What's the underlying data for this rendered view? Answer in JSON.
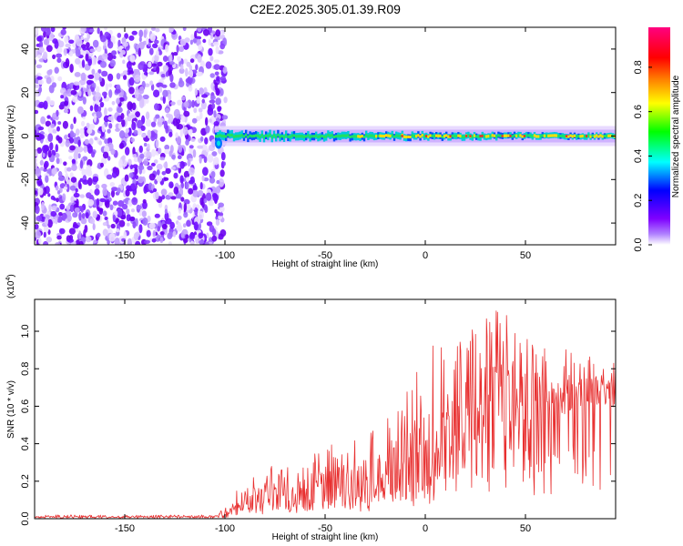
{
  "figure_title": "C2E2.2025.305.01.39.R09",
  "chart_data": [
    {
      "type": "heatmap",
      "title": "C2E2.2025.305.01.39.R09",
      "xlabel": "Height of straight line (km)",
      "ylabel": "Frequency (Hz)",
      "xlim": [
        -195,
        95
      ],
      "ylim": [
        -50,
        50
      ],
      "x_ticks": [
        -150,
        -100,
        -50,
        0,
        50
      ],
      "x_tick_labels": [
        "-150",
        "-100",
        "-50",
        "0",
        "50"
      ],
      "y_ticks": [
        -40,
        -20,
        0,
        20,
        40
      ],
      "y_tick_labels": [
        "-40",
        "-20",
        "0",
        "20",
        "40"
      ],
      "colorbar": {
        "label": "Normalized spectral amplitude",
        "range": [
          0,
          1
        ],
        "ticks": [
          0.0,
          0.2,
          0.4,
          0.6,
          0.8
        ],
        "tick_labels": [
          "0.0",
          "0.2",
          "0.4",
          "0.6",
          "0.8"
        ],
        "colormap": [
          "#ffffff",
          "#7f00ff",
          "#0000ff",
          "#00ffff",
          "#00ff00",
          "#ffff00",
          "#ff8000",
          "#ff0000",
          "#ff0080"
        ]
      },
      "features": {
        "noise_region_x": [
          -195,
          -100
        ],
        "signal_center_hz": 0,
        "signal_start_x": -105
      }
    },
    {
      "type": "line",
      "xlabel": "Height of straight line (km)",
      "ylabel": "SNR (10 * v/v)",
      "y_multiplier_label": "(x10",
      "y_multiplier_exp": "4",
      "y_multiplier_close": ")",
      "xlim": [
        -195,
        95
      ],
      "ylim": [
        0,
        1.17
      ],
      "x_ticks": [
        -150,
        -100,
        -50,
        0,
        50
      ],
      "x_tick_labels": [
        "-150",
        "-100",
        "-50",
        "0",
        "50"
      ],
      "y_ticks": [
        0.0,
        0.2,
        0.4,
        0.6,
        0.8,
        1.0
      ],
      "y_tick_labels": [
        "0.0",
        "0.2",
        "0.4",
        "0.6",
        "0.8",
        "1.0"
      ],
      "line_color": "#e83030",
      "series": [
        {
          "name": "SNR",
          "x": [
            -195,
            -150,
            -105,
            -100,
            -95,
            -90,
            -85,
            -80,
            -75,
            -70,
            -65,
            -60,
            -55,
            -50,
            -45,
            -40,
            -35,
            -30,
            -25,
            -20,
            -15,
            -10,
            -5,
            0,
            5,
            10,
            15,
            20,
            25,
            30,
            35,
            40,
            45,
            50,
            55,
            60,
            65,
            70,
            75,
            80,
            85,
            90,
            95
          ],
          "mean": [
            0.01,
            0.01,
            0.01,
            0.03,
            0.07,
            0.1,
            0.11,
            0.12,
            0.13,
            0.13,
            0.14,
            0.15,
            0.16,
            0.16,
            0.17,
            0.18,
            0.19,
            0.2,
            0.21,
            0.23,
            0.25,
            0.28,
            0.3,
            0.34,
            0.38,
            0.42,
            0.45,
            0.5,
            0.54,
            0.58,
            0.62,
            0.64,
            0.64,
            0.62,
            0.62,
            0.63,
            0.64,
            0.66,
            0.67,
            0.68,
            0.68,
            0.66,
            0.66
          ],
          "peak": [
            0.02,
            0.02,
            0.02,
            0.06,
            0.14,
            0.22,
            0.25,
            0.27,
            0.29,
            0.27,
            0.3,
            0.32,
            0.36,
            0.43,
            0.38,
            0.4,
            0.42,
            0.44,
            0.48,
            0.55,
            0.65,
            0.72,
            0.78,
            0.92,
            0.95,
            1.08,
            0.96,
            1.02,
            1.05,
            1.1,
            1.16,
            1.14,
            1.12,
            1.0,
            0.98,
            0.95,
            0.82,
            0.92,
            0.88,
            0.87,
            0.86,
            0.8,
            0.85
          ]
        }
      ]
    }
  ]
}
